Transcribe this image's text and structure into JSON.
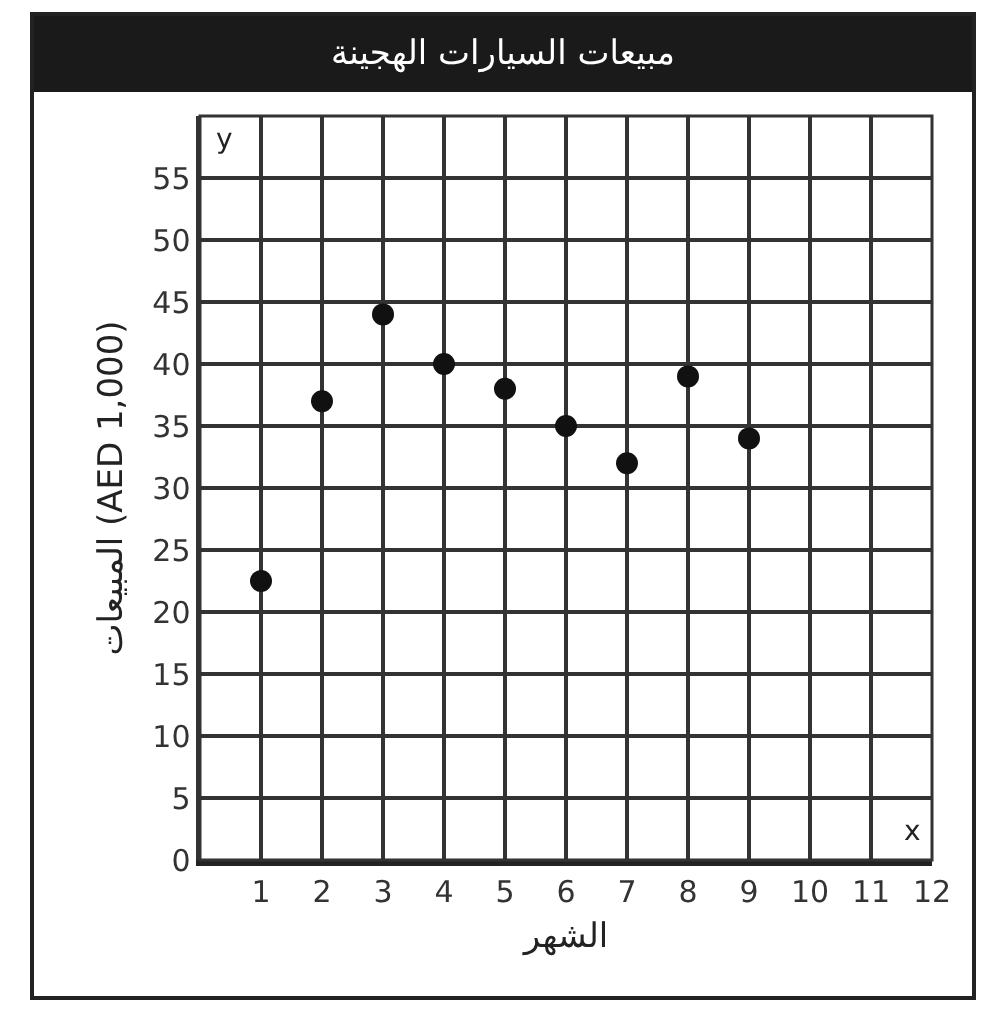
{
  "chart_data": {
    "type": "scatter",
    "title": "مبيعات السيارات الهجينة",
    "xlabel": "الشهر",
    "ylabel": "المبيعات (AED 1,000)",
    "annotations": [
      "y",
      "x"
    ],
    "x": [
      1,
      2,
      3,
      4,
      5,
      6,
      7,
      8,
      9
    ],
    "values": [
      22.5,
      37,
      44,
      40,
      38,
      35,
      32,
      39,
      34
    ],
    "color": "#111111",
    "marker": "circle",
    "grid": true,
    "xlim": [
      0,
      12
    ],
    "xticks": [
      1,
      2,
      3,
      4,
      5,
      6,
      7,
      8,
      9,
      10,
      11,
      12
    ],
    "ylim": [
      0,
      60
    ],
    "yticks": [
      0,
      5,
      10,
      15,
      20,
      25,
      30,
      35,
      40,
      45,
      50,
      55
    ]
  }
}
